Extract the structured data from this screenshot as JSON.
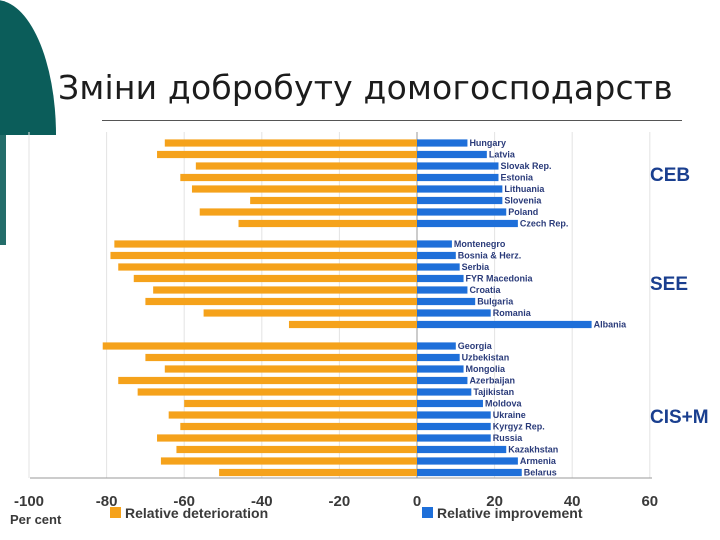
{
  "title": "Зміни добробуту домогосподарств",
  "chart_data": {
    "type": "bar",
    "orientation": "horizontal",
    "title": "Зміни добробуту домогосподарств",
    "xlabel": "Per cent",
    "xlim": [
      -100,
      60
    ],
    "xticks": [
      "-100",
      "-80",
      "-60",
      "-40",
      "-20",
      "0",
      "20",
      "40",
      "60"
    ],
    "legend": [
      {
        "label": "Relative deterioration",
        "color": "#f5a21b"
      },
      {
        "label": "Relative improvement",
        "color": "#1e6fd9"
      }
    ],
    "groups": [
      {
        "name": "CEB",
        "categories": [
          "Hungary",
          "Latvia",
          "Slovak Rep.",
          "Estonia",
          "Lithuania",
          "Slovenia",
          "Poland",
          "Czech Rep."
        ],
        "deterioration": [
          -65,
          -67,
          -57,
          -61,
          -58,
          -43,
          -56,
          -46
        ],
        "improvement": [
          13,
          18,
          21,
          21,
          22,
          22,
          23,
          26
        ]
      },
      {
        "name": "SEE",
        "categories": [
          "Montenegro",
          "Bosnia & Herz.",
          "Serbia",
          "FYR Macedonia",
          "Croatia",
          "Bulgaria",
          "Romania",
          "Albania"
        ],
        "deterioration": [
          -78,
          -79,
          -77,
          -73,
          -68,
          -70,
          -55,
          -33
        ],
        "improvement": [
          9,
          10,
          11,
          12,
          13,
          15,
          19,
          45
        ]
      },
      {
        "name": "CIS+M",
        "categories": [
          "Georgia",
          "Uzbekistan",
          "Mongolia",
          "Azerbaijan",
          "Tajikistan",
          "Moldova",
          "Ukraine",
          "Kyrgyz Rep.",
          "Russia",
          "Kazakhstan",
          "Armenia",
          "Belarus"
        ],
        "deterioration": [
          -81,
          -70,
          -65,
          -77,
          -72,
          -60,
          -64,
          -61,
          -67,
          -62,
          -66,
          -51
        ],
        "improvement": [
          10,
          11,
          12,
          13,
          14,
          17,
          19,
          19,
          19,
          23,
          26,
          27
        ]
      }
    ]
  }
}
